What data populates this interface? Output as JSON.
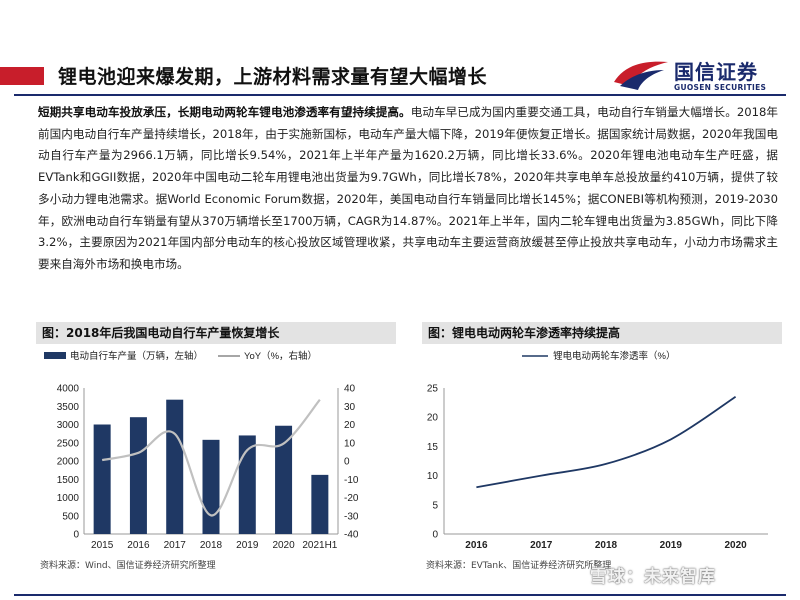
{
  "header": {
    "title": "锂电池迎来爆发期，上游材料需求量有望大幅增长",
    "logo_cn": "国信证券",
    "logo_en": "GUOSEN SECURITIES"
  },
  "paragraph": {
    "lead": "短期共享电动车投放承压，长期电动两轮车锂电池渗透率有望持续提高。",
    "body": "电动车早已成为国内重要交通工具，电动自行车销量大幅增长。2018年前国内电动自行车产量持续增长，2018年，由于实施新国标，电动车产量大幅下降，2019年便恢复正增长。据国家统计局数据，2020年我国电动自行车产量为2966.1万辆，同比增长9.54%，2021年上半年产量为1620.2万辆，同比增长33.6%。2020年锂电池电动车生产旺盛，据EVTank和GGII数据，2020年中国电动二轮车用锂电池出货量为9.7GWh，同比增长78%，2020年共享电单车总投放量约410万辆，提供了较多小动力锂电池需求。据World Economic Forum数据，2020年，美国电动自行车销量同比增长145%；据CONEBI等机构预测，2019-2030年，欧洲电动自行车销量有望从370万辆增长至1700万辆，CAGR为14.87%。2021年上半年，国内二轮车锂电出货量为3.85GWh，同比下降3.2%，主要原因为2021年国内部分电动车的核心投放区域管理收紧，共享电动车主要运营商放缓甚至停止投放共享电动车，小动力市场需求主要来自海外市场和换电市场。"
  },
  "figures": {
    "left_title": "图：2018年后我国电动自行车产量恢复增长",
    "right_title": "图：锂电电动两轮车渗透率持续提高",
    "left_source": "资料来源：Wind、国信证券经济研究所整理",
    "right_source": "资料来源：EVTank、国信证券经济研究所整理"
  },
  "watermark": "雪球：未来智库",
  "colors": {
    "brand_red": "#c81e2b",
    "brand_navy": "#1a2a6c",
    "bar": "#1f3864",
    "line": "#c0c0c0",
    "line_dark": "#1f3864"
  },
  "chart_data": [
    {
      "type": "bar",
      "categories": [
        "2015",
        "2016",
        "2017",
        "2018",
        "2019",
        "2020",
        "2021H1"
      ],
      "series": [
        {
          "name": "电动自行车产量（万辆，左轴）",
          "values": [
            3000,
            3200,
            3680,
            2580,
            2700,
            2966.1,
            1620.2
          ]
        },
        {
          "name": "YoY（%，右轴）",
          "type": "line",
          "values": [
            0.5,
            4.5,
            14.9,
            -29.8,
            6.0,
            9.54,
            33.6
          ]
        }
      ],
      "ylim": [
        0,
        4000
      ],
      "yticks": [
        0,
        500,
        1000,
        1500,
        2000,
        2500,
        3000,
        3500,
        4000
      ],
      "y2lim": [
        -40,
        40
      ],
      "y2ticks": [
        -40,
        -30,
        -20,
        -10,
        0,
        10,
        20,
        30,
        40
      ],
      "grid": false,
      "legend": "top"
    },
    {
      "type": "line",
      "categories": [
        "2016",
        "2017",
        "2018",
        "2019",
        "2020"
      ],
      "series": [
        {
          "name": "锂电电动两轮车渗透率（%）",
          "values": [
            8,
            10,
            12,
            16.2,
            23.5
          ]
        }
      ],
      "ylim": [
        0,
        25
      ],
      "yticks": [
        0,
        5,
        10,
        15,
        20,
        25
      ],
      "grid": false,
      "legend": "top"
    }
  ]
}
